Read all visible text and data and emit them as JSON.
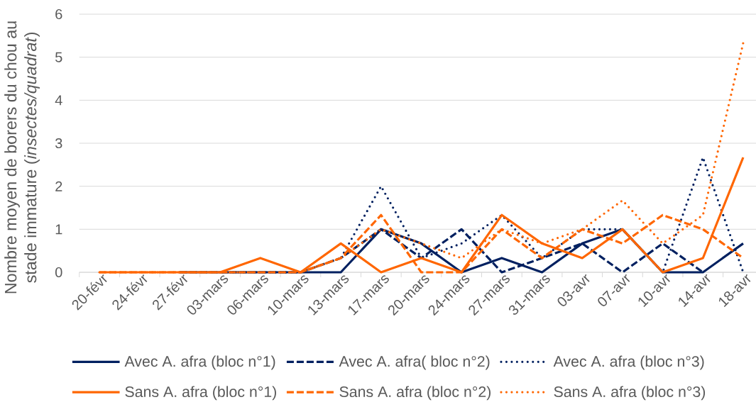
{
  "chart_data": {
    "type": "line",
    "ylabel": "Nombre moyen de borers du chou au stade immature (*insectes/quadrat*)",
    "categories": [
      "20-févr",
      "24-févr",
      "27-févr",
      "03-mars",
      "06-mars",
      "10-mars",
      "13-mars",
      "17-mars",
      "20-mars",
      "24-mars",
      "27-mars",
      "31-mars",
      "03-avr",
      "07-avr",
      "10-avr",
      "14-avr",
      "18-avr"
    ],
    "series": [
      {
        "name": "Avec A. afra (bloc n°1)",
        "color": "#002060",
        "line_style": "solid",
        "values": [
          null,
          null,
          0,
          0,
          0,
          0,
          0,
          1,
          0.67,
          0,
          0.33,
          0,
          0.67,
          1,
          0,
          0,
          0.67
        ]
      },
      {
        "name": "Avec A. afra( bloc n°2)",
        "color": "#002060",
        "line_style": "dashed",
        "values": [
          null,
          null,
          0,
          0,
          0,
          0,
          0.33,
          1,
          0.33,
          1,
          0,
          0.33,
          0.67,
          0,
          0.67,
          0,
          null
        ]
      },
      {
        "name": "Avec A. afra (bloc n°3)",
        "color": "#002060",
        "line_style": "dotted",
        "values": [
          null,
          null,
          0,
          0,
          0,
          0,
          0.33,
          2,
          0.33,
          0.67,
          1.33,
          0.33,
          1,
          1,
          0,
          2.67,
          0
        ]
      },
      {
        "name": "Sans A. afra (bloc n°1)",
        "color": "#ff6600",
        "line_style": "solid",
        "values": [
          0,
          0,
          0,
          0,
          0.33,
          0,
          0.67,
          0,
          0.33,
          0,
          1.33,
          0.67,
          0.33,
          1,
          0,
          0.33,
          2.67
        ]
      },
      {
        "name": "Sans A. afra (bloc n°2)",
        "color": "#ff6600",
        "line_style": "dashed",
        "values": [
          0,
          0,
          0,
          0,
          0,
          0,
          0.33,
          1.33,
          0,
          0,
          1,
          0.33,
          1,
          0.67,
          1.33,
          1,
          0.33
        ]
      },
      {
        "name": "Sans A. afra (bloc n°3)",
        "color": "#ff6600",
        "line_style": "dotted",
        "values": [
          0,
          0,
          0,
          0,
          0,
          0,
          0.33,
          1,
          0.67,
          0.33,
          1,
          0.67,
          1,
          1.67,
          0.67,
          1.33,
          5.33
        ]
      }
    ],
    "ylim": [
      0,
      6
    ],
    "yticks": [
      0,
      1,
      2,
      3,
      4,
      5,
      6
    ],
    "grid": "y",
    "legend": "bottom"
  }
}
